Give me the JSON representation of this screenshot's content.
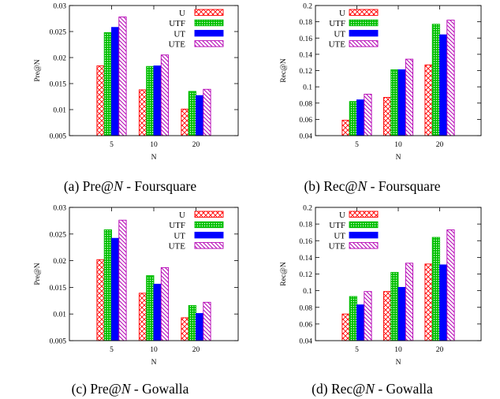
{
  "colors": {
    "U": "#ff0000",
    "UTF": "#00bb00",
    "UT": "#0000ff",
    "UTE": "#b400b4"
  },
  "chart_data": [
    {
      "type": "bar",
      "caption": {
        "label": "(a)",
        "metric": "Pre@",
        "var": "N",
        "dataset": " - Foursquare"
      },
      "xlabel": "N",
      "ylabel": "Pre@N",
      "categories": [
        "5",
        "10",
        "20"
      ],
      "ylim": [
        0.005,
        0.03
      ],
      "yticks": [
        "0.005",
        "0.01",
        "0.015",
        "0.02",
        "0.025",
        "0.03"
      ],
      "legend_position": "top-right",
      "series": [
        {
          "name": "U",
          "values": [
            0.0184,
            0.0138,
            0.0101
          ]
        },
        {
          "name": "UTF",
          "values": [
            0.0248,
            0.0183,
            0.0135
          ]
        },
        {
          "name": "UT",
          "values": [
            0.0258,
            0.0184,
            0.0127
          ]
        },
        {
          "name": "UTE",
          "values": [
            0.0278,
            0.0205,
            0.0139
          ]
        }
      ]
    },
    {
      "type": "bar",
      "caption": {
        "label": "(b)",
        "metric": "Rec@",
        "var": "N",
        "dataset": " - Foursquare"
      },
      "xlabel": "N",
      "ylabel": "Rec@N",
      "categories": [
        "5",
        "10",
        "20"
      ],
      "ylim": [
        0.04,
        0.2
      ],
      "yticks": [
        "0.04",
        "0.06",
        "0.08",
        "0.1",
        "0.12",
        "0.14",
        "0.16",
        "0.18",
        "0.2"
      ],
      "legend_position": "top-left",
      "series": [
        {
          "name": "U",
          "values": [
            0.059,
            0.087,
            0.127
          ]
        },
        {
          "name": "UTF",
          "values": [
            0.082,
            0.121,
            0.177
          ]
        },
        {
          "name": "UT",
          "values": [
            0.084,
            0.121,
            0.164
          ]
        },
        {
          "name": "UTE",
          "values": [
            0.091,
            0.134,
            0.182
          ]
        }
      ]
    },
    {
      "type": "bar",
      "caption": {
        "label": "(c)",
        "metric": "Pre@",
        "var": "N",
        "dataset": " - Gowalla"
      },
      "xlabel": "N",
      "ylabel": "Pre@N",
      "categories": [
        "5",
        "10",
        "20"
      ],
      "ylim": [
        0.005,
        0.03
      ],
      "yticks": [
        "0.005",
        "0.01",
        "0.015",
        "0.02",
        "0.025",
        "0.03"
      ],
      "legend_position": "top-right",
      "series": [
        {
          "name": "U",
          "values": [
            0.0202,
            0.0139,
            0.0093
          ]
        },
        {
          "name": "UTF",
          "values": [
            0.0258,
            0.0172,
            0.0116
          ]
        },
        {
          "name": "UT",
          "values": [
            0.0242,
            0.0156,
            0.0101
          ]
        },
        {
          "name": "UTE",
          "values": [
            0.0276,
            0.0187,
            0.0122
          ]
        }
      ]
    },
    {
      "type": "bar",
      "caption": {
        "label": "(d)",
        "metric": "Rec@",
        "var": "N",
        "dataset": " - Gowalla"
      },
      "xlabel": "N",
      "ylabel": "Rec@N",
      "categories": [
        "5",
        "10",
        "20"
      ],
      "ylim": [
        0.04,
        0.2
      ],
      "yticks": [
        "0.04",
        "0.06",
        "0.08",
        "0.1",
        "0.12",
        "0.14",
        "0.16",
        "0.18",
        "0.2"
      ],
      "legend_position": "top-left",
      "series": [
        {
          "name": "U",
          "values": [
            0.072,
            0.099,
            0.132
          ]
        },
        {
          "name": "UTF",
          "values": [
            0.093,
            0.122,
            0.164
          ]
        },
        {
          "name": "UT",
          "values": [
            0.083,
            0.104,
            0.131
          ]
        },
        {
          "name": "UTE",
          "values": [
            0.099,
            0.133,
            0.173
          ]
        }
      ]
    }
  ]
}
